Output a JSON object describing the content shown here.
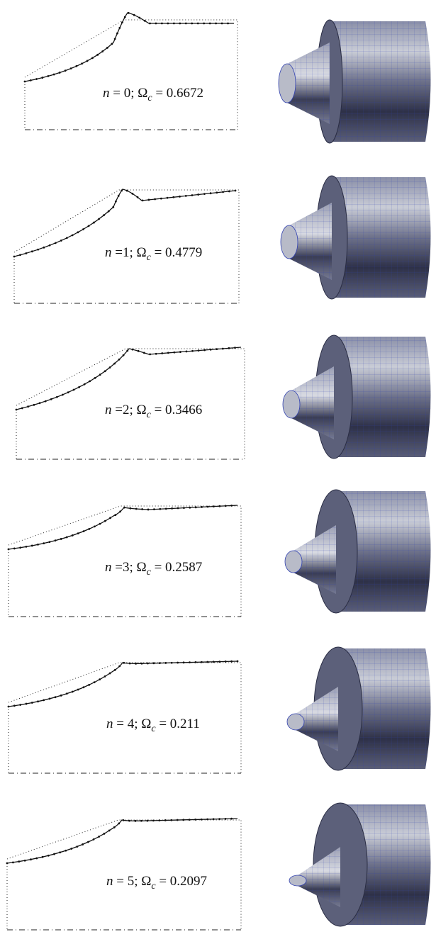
{
  "panels": [
    {
      "n": "n",
      "n_rest": " = 0; ",
      "omega": "Ω",
      "sub": "c",
      "omega_rest": " = 0.6672"
    },
    {
      "n": "n",
      "n_rest": " =1; ",
      "omega": "Ω",
      "sub": "c",
      "omega_rest": " = 0.4779"
    },
    {
      "n": "n",
      "n_rest": " =2; ",
      "omega": "Ω",
      "sub": "c",
      "omega_rest": " = 0.3466"
    },
    {
      "n": "n",
      "n_rest": " =3; ",
      "omega": "Ω",
      "sub": "c",
      "omega_rest": " = 0.2587"
    },
    {
      "n": "n",
      "n_rest": " = 4; ",
      "omega": "Ω",
      "sub": "c",
      "omega_rest": " = 0.211"
    },
    {
      "n": "n",
      "n_rest": " = 5; ",
      "omega": "Ω",
      "sub": "c",
      "omega_rest": " = 0.2097"
    }
  ]
}
